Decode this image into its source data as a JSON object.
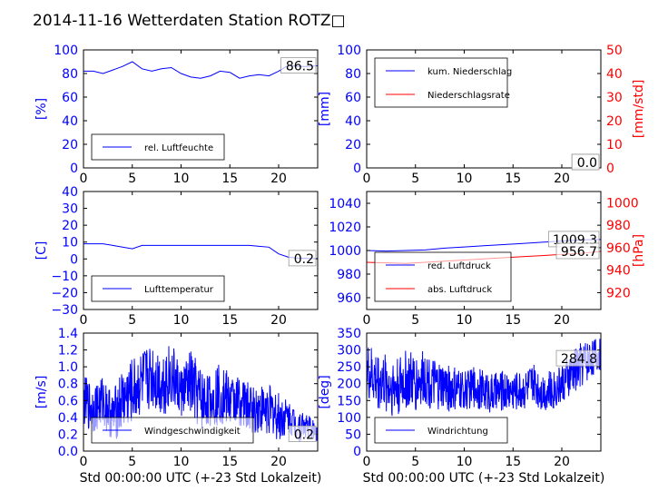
{
  "title": "2014-11-16 Wetterdaten Station ROTZ",
  "title_suffix": "□",
  "colors": {
    "blue": "#0000ff",
    "red": "#ff0000",
    "black": "#000000"
  },
  "chart_data": [
    {
      "id": "humidity",
      "type": "line",
      "xlim": [
        0,
        24
      ],
      "x_ticks": [
        "0",
        "5",
        "10",
        "15",
        "20"
      ],
      "ylim": [
        0,
        100
      ],
      "y_ticks": [
        "0",
        "20",
        "40",
        "60",
        "80",
        "100"
      ],
      "ylabel": "[%]",
      "xlabel": "",
      "legend": {
        "placement": "lower-left",
        "entries": [
          "rel. Luftfeuchte"
        ]
      },
      "annotations": [
        "86.5"
      ],
      "series": [
        {
          "name": "rel. Luftfeuchte",
          "color": "blue",
          "axis": "left",
          "x": [
            0,
            1,
            2,
            3,
            4,
            5,
            6,
            7,
            8,
            9,
            10,
            11,
            12,
            13,
            14,
            15,
            16,
            17,
            18,
            19,
            20,
            21,
            22,
            23,
            24
          ],
          "y": [
            82,
            82,
            80,
            83,
            86,
            90,
            84,
            82,
            84,
            85,
            80,
            77,
            76,
            78,
            82,
            81,
            76,
            78,
            79,
            78,
            82,
            87,
            86,
            86,
            86.5
          ]
        }
      ]
    },
    {
      "id": "precip",
      "type": "line",
      "xlim": [
        0,
        24
      ],
      "x_ticks": [
        "0",
        "5",
        "10",
        "15",
        "20"
      ],
      "ylim": [
        0,
        100
      ],
      "y_ticks": [
        "0",
        "20",
        "40",
        "60",
        "80",
        "100"
      ],
      "ylim_right": [
        0,
        50
      ],
      "y_ticks_right": [
        "0",
        "10",
        "20",
        "30",
        "40",
        "50"
      ],
      "ylabel": "[mm]",
      "ylabel_right": "[mm/std]",
      "xlabel": "",
      "legend": {
        "placement": "upper-left",
        "entries": [
          "kum. Niederschlag",
          "Niederschlagsrate"
        ]
      },
      "annotations": [
        "0.0",
        "0.0"
      ],
      "series": [
        {
          "name": "kum. Niederschlag",
          "color": "blue",
          "axis": "left",
          "x": [
            0,
            24
          ],
          "y": [
            0,
            0
          ]
        },
        {
          "name": "Niederschlagsrate",
          "color": "red",
          "axis": "right",
          "x": [
            0,
            24
          ],
          "y": [
            0,
            0
          ]
        }
      ]
    },
    {
      "id": "temperature",
      "type": "line",
      "xlim": [
        0,
        24
      ],
      "x_ticks": [
        "0",
        "5",
        "10",
        "15",
        "20"
      ],
      "ylim": [
        -30,
        40
      ],
      "y_ticks": [
        "−30",
        "−20",
        "−10",
        "0",
        "10",
        "20",
        "30",
        "40"
      ],
      "ylabel": "[C]",
      "xlabel": "",
      "legend": {
        "placement": "lower-left",
        "entries": [
          "Lufttemperatur"
        ]
      },
      "annotations": [
        "0.2"
      ],
      "series": [
        {
          "name": "Lufttemperatur",
          "color": "blue",
          "axis": "left",
          "x": [
            0,
            1,
            2,
            3,
            4,
            5,
            6,
            7,
            8,
            9,
            10,
            11,
            12,
            13,
            14,
            15,
            16,
            17,
            18,
            19,
            20,
            21,
            22,
            23,
            24
          ],
          "y": [
            9,
            9,
            9,
            8,
            7,
            6,
            8,
            8,
            8,
            8,
            8,
            8,
            8,
            8,
            8,
            8,
            8,
            8,
            7.5,
            7,
            3,
            1,
            0.5,
            0.3,
            0.2
          ]
        }
      ]
    },
    {
      "id": "pressure",
      "type": "line",
      "xlim": [
        0,
        24
      ],
      "x_ticks": [
        "0",
        "5",
        "10",
        "15",
        "20"
      ],
      "ylim": [
        950,
        1050
      ],
      "y_ticks": [
        "960",
        "980",
        "1000",
        "1020",
        "1040"
      ],
      "ylim_right": [
        905,
        1010
      ],
      "y_ticks_right": [
        "920",
        "940",
        "960",
        "980",
        "1000"
      ],
      "ylabel": "",
      "ylabel_right": "[hPa]",
      "xlabel": "",
      "legend": {
        "placement": "lower-left",
        "entries": [
          "red. Luftdruck",
          "abs. Luftdruck"
        ]
      },
      "annotations": [
        "1009.3",
        "956.7"
      ],
      "series": [
        {
          "name": "red. Luftdruck",
          "color": "blue",
          "axis": "left",
          "x": [
            0,
            2,
            4,
            6,
            8,
            10,
            12,
            14,
            16,
            18,
            20,
            22,
            24
          ],
          "y": [
            1000,
            999.5,
            1000,
            1000.5,
            1002,
            1003,
            1004,
            1005,
            1006,
            1007,
            1008,
            1009,
            1009.3
          ]
        },
        {
          "name": "abs. Luftdruck",
          "color": "red",
          "axis": "right",
          "x": [
            0,
            2,
            4,
            6,
            8,
            10,
            12,
            14,
            16,
            18,
            20,
            22,
            24
          ],
          "y": [
            947,
            946.5,
            946,
            947,
            948,
            949,
            950,
            951,
            952,
            953,
            954,
            955,
            956.7
          ]
        }
      ]
    },
    {
      "id": "windspeed",
      "type": "line",
      "xlim": [
        0,
        24
      ],
      "x_ticks": [
        "0",
        "5",
        "10",
        "15",
        "20"
      ],
      "ylim": [
        0,
        1.4
      ],
      "y_ticks": [
        "0.0",
        "0.2",
        "0.4",
        "0.6",
        "0.8",
        "1.0",
        "1.2",
        "1.4"
      ],
      "ylabel": "[m/s]",
      "xlabel": "Std 00:00:00 UTC (+-23 Std Lokalzeit)",
      "legend": {
        "placement": "lower-left",
        "entries": [
          "Windgeschwindigkeit"
        ]
      },
      "annotations": [
        "0.2"
      ],
      "series": [
        {
          "name": "Windgeschwindigkeit",
          "color": "blue",
          "axis": "left",
          "x": [
            0,
            1,
            2,
            3,
            4,
            5,
            6,
            7,
            8,
            9,
            10,
            11,
            12,
            13,
            14,
            15,
            16,
            17,
            18,
            19,
            20,
            21,
            22,
            23,
            24
          ],
          "y": [
            0.6,
            0.5,
            0.6,
            0.4,
            0.6,
            0.7,
            0.8,
            0.9,
            0.8,
            0.9,
            0.7,
            0.8,
            0.6,
            0.6,
            0.7,
            0.6,
            0.6,
            0.5,
            0.5,
            0.5,
            0.4,
            0.4,
            0.3,
            0.3,
            0.2
          ],
          "amp": [
            0.3,
            0.3,
            0.3,
            0.3,
            0.4,
            0.4,
            0.4,
            0.4,
            0.4,
            0.4,
            0.3,
            0.4,
            0.4,
            0.3,
            0.4,
            0.3,
            0.3,
            0.3,
            0.3,
            0.3,
            0.3,
            0.2,
            0.2,
            0.15,
            0.1
          ]
        }
      ]
    },
    {
      "id": "winddir",
      "type": "line",
      "xlim": [
        0,
        24
      ],
      "x_ticks": [
        "0",
        "5",
        "10",
        "15",
        "20"
      ],
      "ylim": [
        0,
        350
      ],
      "y_ticks": [
        "0",
        "50",
        "100",
        "150",
        "200",
        "250",
        "300",
        "350"
      ],
      "ylabel": "[deg]",
      "xlabel": "Std 00:00:00 UTC (+-23 Std Lokalzeit)",
      "legend": {
        "placement": "lower-left",
        "entries": [
          "Windrichtung"
        ]
      },
      "annotations": [
        "284.8"
      ],
      "series": [
        {
          "name": "Windrichtung",
          "color": "blue",
          "axis": "left",
          "x": [
            0,
            1,
            2,
            3,
            4,
            5,
            6,
            7,
            8,
            9,
            10,
            11,
            12,
            13,
            14,
            15,
            16,
            17,
            18,
            19,
            20,
            21,
            22,
            23,
            24
          ],
          "y": [
            230,
            210,
            200,
            190,
            210,
            200,
            220,
            190,
            190,
            180,
            180,
            190,
            180,
            170,
            180,
            180,
            180,
            200,
            180,
            180,
            200,
            230,
            260,
            280,
            285
          ],
          "amp": [
            90,
            90,
            90,
            90,
            90,
            90,
            80,
            80,
            70,
            70,
            60,
            60,
            60,
            60,
            60,
            60,
            60,
            60,
            60,
            60,
            60,
            70,
            70,
            60,
            50
          ]
        }
      ]
    }
  ]
}
